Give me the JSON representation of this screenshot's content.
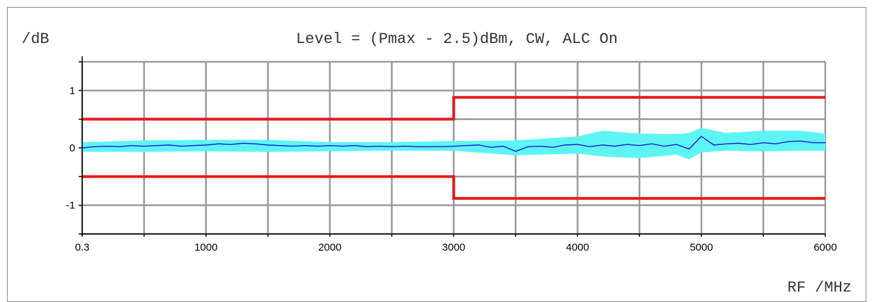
{
  "chart_data": {
    "type": "line",
    "title": "Level = (Pmax - 2.5)dBm, CW, ALC On",
    "ylabel": "/dB",
    "xlabel": "RF /MHz",
    "xlim": [
      0.3,
      6000
    ],
    "ylim": [
      -1.5,
      1.5
    ],
    "x_ticks": [
      {
        "value": 0.3,
        "label": "0.3"
      },
      {
        "value": 1000,
        "label": "1000"
      },
      {
        "value": 2000,
        "label": "2000"
      },
      {
        "value": 3000,
        "label": "3000"
      },
      {
        "value": 4000,
        "label": "4000"
      },
      {
        "value": 5000,
        "label": "5000"
      },
      {
        "value": 6000,
        "label": "6000"
      }
    ],
    "x_grid": [
      0.3,
      500,
      1000,
      1500,
      2000,
      2500,
      3000,
      3500,
      4000,
      4500,
      5000,
      5500,
      6000
    ],
    "y_ticks": [
      {
        "value": 1,
        "label": "1"
      },
      {
        "value": 0,
        "label": "0"
      },
      {
        "value": -1,
        "label": "-1"
      }
    ],
    "y_grid": [
      -1.5,
      -1,
      -0.5,
      0,
      0.5,
      1,
      1.5
    ],
    "grid": true,
    "series": [
      {
        "kind": "limit",
        "color": "#e41a1a",
        "x": [
          0.3,
          3000,
          3000,
          6000
        ],
        "y": [
          0.5,
          0.5,
          0.88,
          0.88
        ]
      },
      {
        "kind": "limit",
        "color": "#e41a1a",
        "x": [
          0.3,
          3000,
          3000,
          6000
        ],
        "y": [
          -0.5,
          -0.5,
          -0.88,
          -0.88
        ]
      },
      {
        "kind": "band",
        "color": "#5ff4f4",
        "x": [
          0.3,
          500,
          1000,
          1500,
          2000,
          2500,
          3000,
          3500,
          4000,
          4200,
          4500,
          4800,
          4900,
          5000,
          5200,
          5500,
          5800,
          6000
        ],
        "upper": [
          0.1,
          0.13,
          0.14,
          0.14,
          0.1,
          0.1,
          0.12,
          0.13,
          0.2,
          0.3,
          0.25,
          0.24,
          0.26,
          0.35,
          0.26,
          0.3,
          0.3,
          0.25
        ],
        "lower": [
          -0.07,
          -0.07,
          -0.06,
          -0.07,
          -0.06,
          -0.05,
          -0.05,
          -0.13,
          -0.1,
          -0.15,
          -0.18,
          -0.12,
          -0.2,
          -0.08,
          -0.05,
          -0.06,
          -0.05,
          -0.05
        ]
      },
      {
        "kind": "measurement",
        "color": "#1a1ad6",
        "x": [
          0.3,
          100,
          200,
          300,
          400,
          500,
          600,
          700,
          800,
          900,
          1000,
          1100,
          1200,
          1300,
          1400,
          1500,
          1600,
          1700,
          1800,
          1900,
          2000,
          2100,
          2200,
          2300,
          2400,
          2500,
          2600,
          2700,
          2800,
          2900,
          3000,
          3100,
          3200,
          3300,
          3400,
          3500,
          3600,
          3700,
          3800,
          3900,
          4000,
          4100,
          4200,
          4300,
          4400,
          4500,
          4600,
          4700,
          4800,
          4900,
          5000,
          5100,
          5200,
          5300,
          5400,
          5500,
          5600,
          5700,
          5800,
          5900,
          6000
        ],
        "y": [
          0.0,
          0.02,
          0.03,
          0.02,
          0.04,
          0.03,
          0.04,
          0.05,
          0.03,
          0.04,
          0.05,
          0.07,
          0.06,
          0.08,
          0.07,
          0.05,
          0.04,
          0.03,
          0.04,
          0.03,
          0.04,
          0.03,
          0.04,
          0.02,
          0.03,
          0.02,
          0.03,
          0.02,
          0.02,
          0.02,
          0.03,
          0.04,
          0.05,
          0.01,
          0.03,
          -0.06,
          0.02,
          0.03,
          0.01,
          0.05,
          0.06,
          0.02,
          0.05,
          0.03,
          0.06,
          0.04,
          0.07,
          0.03,
          0.06,
          -0.02,
          0.2,
          0.05,
          0.07,
          0.08,
          0.06,
          0.09,
          0.07,
          0.11,
          0.12,
          0.09,
          0.09
        ]
      }
    ]
  }
}
